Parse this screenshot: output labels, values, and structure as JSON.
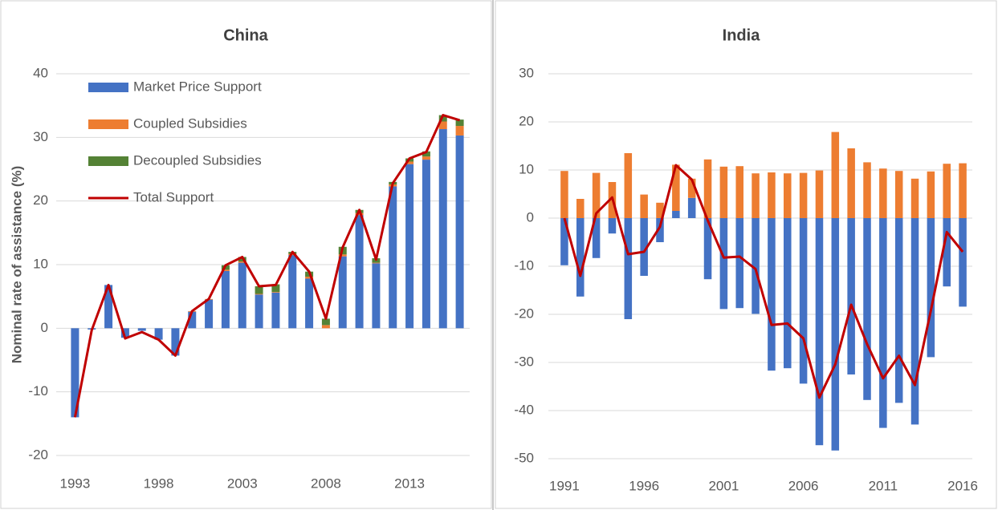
{
  "chart_data": [
    {
      "type": "bar",
      "stacked": true,
      "title": "China",
      "y_label": "Nominal rate of assistance (%)",
      "categories": [
        "1993",
        null,
        null,
        null,
        null,
        "1998",
        null,
        null,
        null,
        null,
        "2003",
        null,
        null,
        null,
        null,
        "2008",
        null,
        null,
        null,
        null,
        "2013",
        null,
        null,
        null
      ],
      "series": [
        {
          "name": "Market Price Support",
          "color": "#4472c4",
          "values": [
            -14,
            -0.2,
            6.8,
            -1.5,
            -0.4,
            -1.8,
            -4.3,
            2.6,
            4.5,
            9.0,
            10.3,
            5.3,
            5.6,
            11.5,
            7.8,
            0,
            11.3,
            17.8,
            10.2,
            22.3,
            25.8,
            26.5,
            31.3,
            30.3
          ]
        },
        {
          "name": "Coupled Subsidies",
          "color": "#ed7d31",
          "values": [
            0,
            0,
            0,
            0,
            0,
            0,
            0,
            0.1,
            0.1,
            0.2,
            0.2,
            0.1,
            0.1,
            0.2,
            0.3,
            0.5,
            0.3,
            0.3,
            0.1,
            0.3,
            0.4,
            0.5,
            1.2,
            1.5
          ]
        },
        {
          "name": "Decoupled Subsidies",
          "color": "#548235",
          "values": [
            0,
            0,
            0,
            0,
            0,
            0,
            0,
            0,
            0,
            0.7,
            0.7,
            1.2,
            1.2,
            0.3,
            0.8,
            1.0,
            1.2,
            0.5,
            0.7,
            0.4,
            0.5,
            0.8,
            1.0,
            1.0
          ]
        },
        {
          "name": "Total Support",
          "color": "#c00000",
          "type": "line",
          "values": [
            -14,
            -0.3,
            6.8,
            -1.6,
            -0.6,
            -1.8,
            -4.3,
            2.7,
            4.6,
            9.9,
            11.2,
            6.6,
            6.8,
            12.0,
            8.9,
            1.5,
            12.7,
            18.6,
            10.8,
            22.8,
            26.7,
            27.7,
            33.5,
            32.7
          ]
        }
      ],
      "ylim": [
        -20,
        40
      ],
      "yticks": [
        -20,
        -10,
        0,
        10,
        20,
        30,
        40
      ],
      "grid": true,
      "legend": "top-left"
    },
    {
      "type": "bar",
      "stacked": true,
      "title": "India",
      "categories": [
        "1991",
        null,
        null,
        null,
        null,
        "1996",
        null,
        null,
        null,
        null,
        "2001",
        null,
        null,
        null,
        null,
        "2006",
        null,
        null,
        null,
        null,
        "2011",
        null,
        null,
        null,
        null,
        "2016"
      ],
      "series": [
        {
          "color": "#4472c4",
          "values": [
            -9.8,
            -16.3,
            -8.3,
            -3.2,
            -21,
            -12,
            -5,
            1.5,
            4.2,
            -12.7,
            -18.9,
            -18.7,
            -19.9,
            -31.7,
            -31.2,
            -34.4,
            -47.2,
            -48.3,
            -32.5,
            -37.8,
            -43.6,
            -38.4,
            -42.9,
            -28.9,
            -14.2,
            -18.4
          ]
        },
        {
          "color": "#ed7d31",
          "values": [
            9.8,
            4.0,
            9.4,
            7.5,
            13.5,
            4.9,
            3.2,
            9.6,
            4.0,
            12.2,
            10.7,
            10.8,
            9.3,
            9.5,
            9.3,
            9.4,
            9.9,
            17.9,
            14.5,
            11.6,
            10.3,
            9.8,
            8.2,
            9.7,
            11.3,
            11.4
          ]
        },
        {
          "color": "#c00000",
          "type": "line",
          "values": [
            0,
            -12,
            1,
            4.3,
            -7.5,
            -7,
            -1.8,
            11,
            8,
            -0.5,
            -8.2,
            -8,
            -10.6,
            -22.2,
            -21.9,
            -25,
            -37.3,
            -30.4,
            -18,
            -26.2,
            -33.3,
            -28.6,
            -34.7,
            -19.2,
            -2.9,
            -7
          ]
        }
      ],
      "ylim": [
        -50,
        30
      ],
      "yticks": [
        -50,
        -40,
        -30,
        -20,
        -10,
        0,
        10,
        20,
        30
      ],
      "grid": true
    }
  ]
}
